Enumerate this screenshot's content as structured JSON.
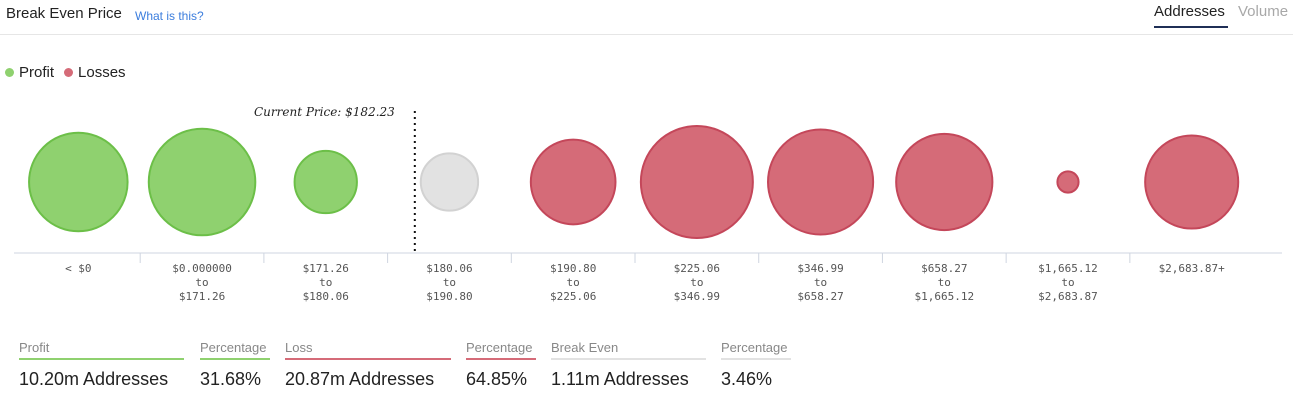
{
  "header": {
    "title": "Break Even Price",
    "help_link": "What is this?",
    "tabs": [
      "Addresses",
      "Volume"
    ],
    "active_tab": "Addresses"
  },
  "legend": {
    "profit_label": "Profit",
    "losses_label": "Losses"
  },
  "colors": {
    "profit": "#8fd16f",
    "profit_stroke": "#6cbf48",
    "loss": "#d56b78",
    "loss_stroke": "#c4475a",
    "neutral": "#e2e2e2",
    "neutral_stroke": "#d2d2d2"
  },
  "chart_data": {
    "type": "bubble",
    "current_price_label": "Current Price: $182.23",
    "categories": [
      {
        "lines": [
          "< $0"
        ],
        "status": "profit",
        "size": 6.5
      },
      {
        "lines": [
          "$0.000000",
          "to",
          "$171.26"
        ],
        "status": "profit",
        "size": 7.6
      },
      {
        "lines": [
          "$171.26",
          "to",
          "$180.06"
        ],
        "status": "profit",
        "size": 2.6
      },
      {
        "lines": [
          "$180.06",
          "to",
          "$190.80"
        ],
        "status": "neutral",
        "size": 2.2
      },
      {
        "lines": [
          "$190.80",
          "to",
          "$225.06"
        ],
        "status": "loss",
        "size": 4.8
      },
      {
        "lines": [
          "$225.06",
          "to",
          "$346.99"
        ],
        "status": "loss",
        "size": 8.4
      },
      {
        "lines": [
          "$346.99",
          "to",
          "$658.27"
        ],
        "status": "loss",
        "size": 7.4
      },
      {
        "lines": [
          "$658.27",
          "to",
          "$1,665.12"
        ],
        "status": "loss",
        "size": 6.2
      },
      {
        "lines": [
          "$1,665.12",
          "to",
          "$2,683.87"
        ],
        "status": "loss",
        "size": 0.3
      },
      {
        "lines": [
          "$2,683.87+"
        ],
        "status": "loss",
        "size": 5.8
      }
    ]
  },
  "stats": [
    {
      "label": "Profit",
      "value": "10.20m Addresses",
      "color": "#8fd16f"
    },
    {
      "label": "Percentage",
      "value": "31.68%",
      "color": "#8fd16f"
    },
    {
      "label": "Loss",
      "value": "20.87m Addresses",
      "color": "#d56b78"
    },
    {
      "label": "Percentage",
      "value": "64.85%",
      "color": "#d56b78"
    },
    {
      "label": "Break Even",
      "value": "1.11m Addresses",
      "color": "#e2e2e2"
    },
    {
      "label": "Percentage",
      "value": "3.46%",
      "color": "#e2e2e2"
    }
  ]
}
